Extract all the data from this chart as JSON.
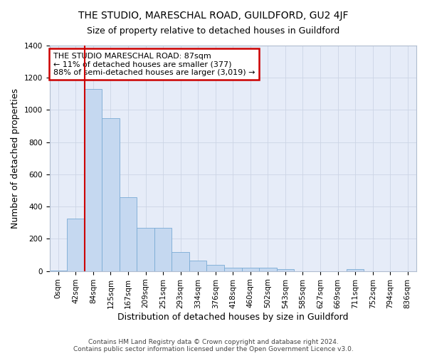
{
  "title": "THE STUDIO, MARESCHAL ROAD, GUILDFORD, GU2 4JF",
  "subtitle": "Size of property relative to detached houses in Guildford",
  "xlabel": "Distribution of detached houses by size in Guildford",
  "ylabel": "Number of detached properties",
  "bar_labels": [
    "0sqm",
    "42sqm",
    "84sqm",
    "125sqm",
    "167sqm",
    "209sqm",
    "251sqm",
    "293sqm",
    "334sqm",
    "376sqm",
    "418sqm",
    "460sqm",
    "502sqm",
    "543sqm",
    "585sqm",
    "627sqm",
    "669sqm",
    "711sqm",
    "752sqm",
    "794sqm",
    "836sqm"
  ],
  "bar_values": [
    5,
    325,
    1130,
    950,
    460,
    270,
    270,
    120,
    65,
    40,
    20,
    20,
    20,
    10,
    0,
    0,
    0,
    10,
    0,
    0,
    0
  ],
  "bar_color": "#c5d8f0",
  "bar_edge_color": "#7aabd4",
  "vline_color": "#cc0000",
  "annotation_text": "THE STUDIO MARESCHAL ROAD: 87sqm\n← 11% of detached houses are smaller (377)\n88% of semi-detached houses are larger (3,019) →",
  "annotation_box_color": "#ffffff",
  "annotation_box_edge": "#cc0000",
  "ylim": [
    0,
    1400
  ],
  "yticks": [
    0,
    200,
    400,
    600,
    800,
    1000,
    1200,
    1400
  ],
  "grid_color": "#ccd5e5",
  "bg_color": "#e6ecf8",
  "footer": "Contains HM Land Registry data © Crown copyright and database right 2024.\nContains public sector information licensed under the Open Government Licence v3.0.",
  "title_fontsize": 10,
  "subtitle_fontsize": 9,
  "axis_label_fontsize": 9,
  "tick_fontsize": 7.5,
  "annotation_fontsize": 8,
  "footer_fontsize": 6.5
}
